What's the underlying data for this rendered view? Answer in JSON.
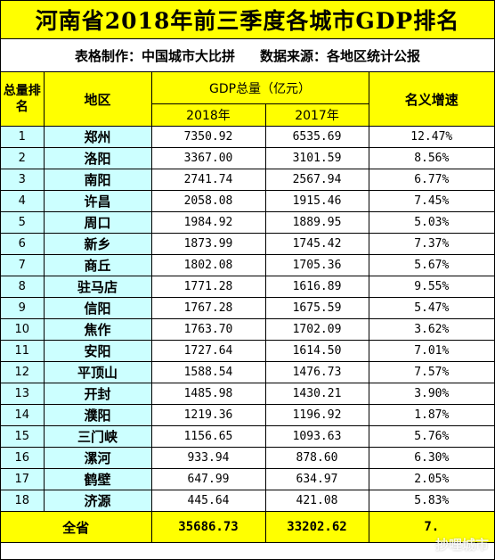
{
  "title": "河南省2018年前三季度各城市GDP排名",
  "subtitle": {
    "maker": "表格制作：中国城市大比拼",
    "source": "数据来源：各地区统计公报"
  },
  "header": {
    "rank": "总量排名",
    "region": "地区",
    "gdp_total": "GDP总量（亿元）",
    "year_2018": "2018年",
    "year_2017": "2017年",
    "growth": "名义增速"
  },
  "rows": [
    {
      "rank": "1",
      "city": "郑州",
      "y2018": "7350.92",
      "y2017": "6535.69",
      "growth": "12.47%"
    },
    {
      "rank": "2",
      "city": "洛阳",
      "y2018": "3367.00",
      "y2017": "3101.59",
      "growth": "8.56%"
    },
    {
      "rank": "3",
      "city": "南阳",
      "y2018": "2741.74",
      "y2017": "2567.94",
      "growth": "6.77%"
    },
    {
      "rank": "4",
      "city": "许昌",
      "y2018": "2058.08",
      "y2017": "1915.46",
      "growth": "7.45%"
    },
    {
      "rank": "5",
      "city": "周口",
      "y2018": "1984.92",
      "y2017": "1889.95",
      "growth": "5.03%"
    },
    {
      "rank": "6",
      "city": "新乡",
      "y2018": "1873.99",
      "y2017": "1745.42",
      "growth": "7.37%"
    },
    {
      "rank": "7",
      "city": "商丘",
      "y2018": "1802.08",
      "y2017": "1705.36",
      "growth": "5.67%"
    },
    {
      "rank": "8",
      "city": "驻马店",
      "y2018": "1771.28",
      "y2017": "1616.89",
      "growth": "9.55%"
    },
    {
      "rank": "9",
      "city": "信阳",
      "y2018": "1767.28",
      "y2017": "1675.59",
      "growth": "5.47%"
    },
    {
      "rank": "10",
      "city": "焦作",
      "y2018": "1763.70",
      "y2017": "1702.09",
      "growth": "3.62%"
    },
    {
      "rank": "11",
      "city": "安阳",
      "y2018": "1727.64",
      "y2017": "1614.50",
      "growth": "7.01%"
    },
    {
      "rank": "12",
      "city": "平顶山",
      "y2018": "1588.54",
      "y2017": "1476.73",
      "growth": "7.57%"
    },
    {
      "rank": "13",
      "city": "开封",
      "y2018": "1485.98",
      "y2017": "1430.21",
      "growth": "3.90%"
    },
    {
      "rank": "14",
      "city": "濮阳",
      "y2018": "1219.36",
      "y2017": "1196.92",
      "growth": "1.87%"
    },
    {
      "rank": "15",
      "city": "三门峡",
      "y2018": "1156.65",
      "y2017": "1093.63",
      "growth": "5.76%"
    },
    {
      "rank": "16",
      "city": "漯河",
      "y2018": "933.94",
      "y2017": "878.60",
      "growth": "6.30%"
    },
    {
      "rank": "17",
      "city": "鹤壁",
      "y2018": "647.99",
      "y2017": "634.97",
      "growth": "2.05%"
    },
    {
      "rank": "18",
      "city": "济源",
      "y2018": "445.64",
      "y2017": "421.08",
      "growth": "5.83%"
    }
  ],
  "total": {
    "label": "全省",
    "y2018": "35686.73",
    "y2017": "33202.62",
    "growth": "7."
  },
  "watermark": "抄哩城市"
}
